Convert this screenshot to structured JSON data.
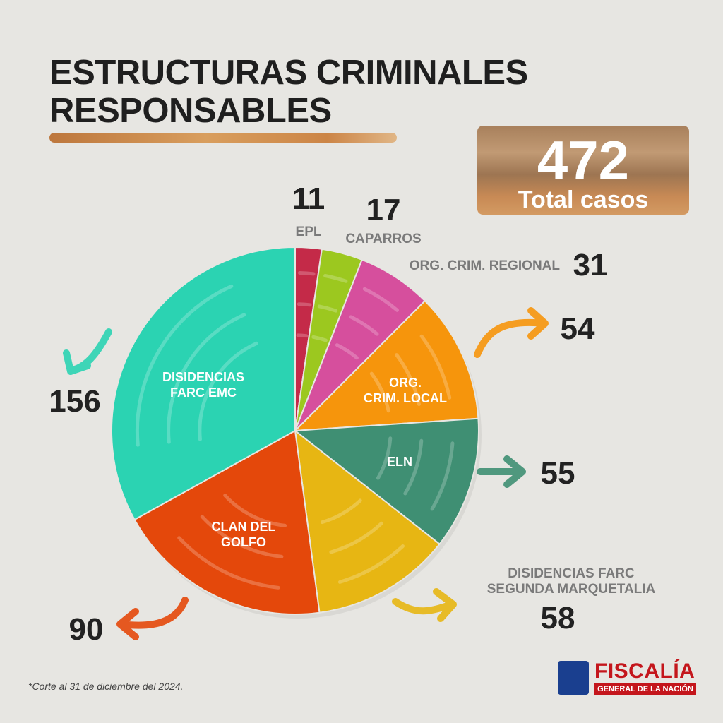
{
  "title_lines": [
    "ESTRUCTURAS CRIMINALES",
    "RESPONSABLES"
  ],
  "total": {
    "value": "472",
    "label": "Total casos"
  },
  "footnote": "*Corte al 31 de diciembre del 2024.",
  "logo": {
    "name": "FISCALÍA",
    "subtitle": "GENERAL DE LA NACIÓN"
  },
  "chart_data": {
    "type": "pie",
    "slices": [
      {
        "label": "EPL",
        "value": 11,
        "color": "#c42a48",
        "label_style": "outside",
        "label_lines": [
          "EPL"
        ]
      },
      {
        "label": "CAPARROS",
        "value": 17,
        "color": "#9cc81f",
        "label_style": "outside",
        "label_lines": [
          "CAPARROS"
        ]
      },
      {
        "label": "ORG. CRIM. REGIONAL",
        "value": 31,
        "color": "#d64f9d",
        "label_style": "outside",
        "label_lines": [
          "ORG. CRIM. REGIONAL"
        ]
      },
      {
        "label": "ORG. CRIM. LOCAL",
        "value": 54,
        "color": "#f6950c",
        "label_style": "inside",
        "label_lines": [
          "ORG.",
          "CRIM. LOCAL"
        ]
      },
      {
        "label": "ELN",
        "value": 55,
        "color": "#3f8f73",
        "label_style": "inside",
        "label_lines": [
          "ELN"
        ]
      },
      {
        "label": "DISIDENCIAS FARC SEGUNDA MARQUETALIA",
        "value": 58,
        "color": "#e7b613",
        "label_style": "outside",
        "label_lines": [
          "DISIDENCIAS FARC",
          "SEGUNDA MARQUETALIA"
        ]
      },
      {
        "label": "CLAN DEL GOLFO",
        "value": 90,
        "color": "#e4480b",
        "label_style": "inside",
        "label_lines": [
          "CLAN DEL",
          "GOLFO"
        ]
      },
      {
        "label": "DISIDENCIAS FARC EMC",
        "value": 156,
        "color": "#2bd3b2",
        "label_style": "inside",
        "label_lines": [
          "DISIDENCIAS",
          "FARC EMC"
        ]
      }
    ]
  }
}
